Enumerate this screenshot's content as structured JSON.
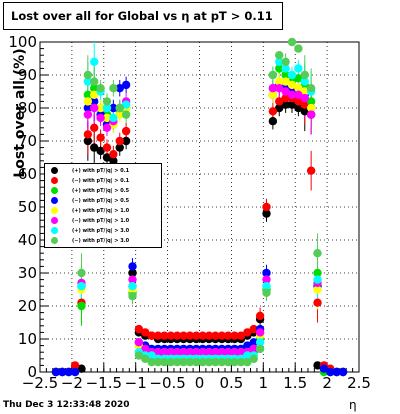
{
  "title": "Lost over all for Global vs    η at pT > 0.11",
  "footer_timestamp": "Thu Dec  3 12:33:48 2020",
  "chart_data": {
    "type": "scatter",
    "xlabel": "η",
    "ylabel": "Lost over all (%)",
    "xlim": [
      -2.5,
      2.5
    ],
    "ylim": [
      0,
      100
    ],
    "x_ticks": [
      "−2.5",
      "−2",
      "−1.5",
      "−1",
      "−0.5",
      "0",
      "0.5",
      "1",
      "1.5",
      "2",
      "2.5"
    ],
    "y_ticks": [
      "0",
      "10",
      "20",
      "30",
      "40",
      "50",
      "60",
      "70",
      "80",
      "90",
      "100"
    ],
    "grid": true,
    "legend_position": "left-middle",
    "series": [
      {
        "name": "(+) with pT/|q| > 0.1",
        "color": "#000000",
        "x": [
          -2.25,
          -2.15,
          -2.05,
          -1.95,
          -1.85,
          -1.75,
          -1.65,
          -1.55,
          -1.45,
          -1.35,
          -1.25,
          -1.15,
          -1.05,
          -0.95,
          -0.85,
          -0.75,
          -0.65,
          -0.55,
          -0.45,
          -0.35,
          -0.25,
          -0.15,
          -0.05,
          0.05,
          0.15,
          0.25,
          0.35,
          0.45,
          0.55,
          0.65,
          0.75,
          0.85,
          0.95,
          1.05,
          1.15,
          1.25,
          1.35,
          1.45,
          1.55,
          1.65,
          1.75,
          1.85,
          1.95,
          2.05,
          2.15,
          2.25
        ],
        "y": [
          0,
          0,
          0,
          1,
          1,
          70,
          68,
          67,
          65,
          64,
          68,
          70,
          30,
          12,
          11,
          11,
          10,
          10,
          10,
          10,
          10,
          10,
          10,
          10,
          10,
          10,
          10,
          10,
          10,
          10,
          11,
          12,
          16,
          48,
          76,
          80,
          81,
          81,
          80,
          79,
          78,
          2,
          1,
          0,
          0,
          0
        ]
      },
      {
        "name": "(−) with pT/|q| > 0.1",
        "color": "#ff0000",
        "x": [
          -2.25,
          -2.15,
          -2.05,
          -1.95,
          -1.85,
          -1.75,
          -1.65,
          -1.55,
          -1.45,
          -1.35,
          -1.25,
          -1.15,
          -1.05,
          -0.95,
          -0.85,
          -0.75,
          -0.65,
          -0.55,
          -0.45,
          -0.35,
          -0.25,
          -0.15,
          -0.05,
          0.05,
          0.15,
          0.25,
          0.35,
          0.45,
          0.55,
          0.65,
          0.75,
          0.85,
          0.95,
          1.05,
          1.15,
          1.25,
          1.35,
          1.45,
          1.55,
          1.65,
          1.75,
          1.85,
          1.95,
          2.05,
          2.15,
          2.25
        ],
        "y": [
          0,
          0,
          0,
          2,
          21,
          72,
          74,
          71,
          68,
          66,
          70,
          73,
          26,
          13,
          12,
          11,
          11,
          11,
          11,
          11,
          11,
          11,
          11,
          11,
          11,
          11,
          11,
          11,
          11,
          11,
          12,
          13,
          17,
          50,
          79,
          82,
          83,
          83,
          82,
          81,
          61,
          21,
          2,
          1,
          0,
          0
        ]
      },
      {
        "name": "(+) with pT/|q| > 0.5",
        "color": "#00dd00",
        "x": [
          -2.25,
          -2.15,
          -2.05,
          -1.95,
          -1.85,
          -1.75,
          -1.65,
          -1.55,
          -1.45,
          -1.35,
          -1.25,
          -1.15,
          -1.05,
          -0.95,
          -0.85,
          -0.75,
          -0.65,
          -0.55,
          -0.45,
          -0.35,
          -0.25,
          -0.15,
          -0.05,
          0.05,
          0.15,
          0.25,
          0.35,
          0.45,
          0.55,
          0.65,
          0.75,
          0.85,
          0.95,
          1.05,
          1.15,
          1.25,
          1.35,
          1.45,
          1.55,
          1.65,
          1.75,
          1.85,
          1.95,
          2.05,
          2.15,
          2.25
        ],
        "y": [
          0,
          0,
          0,
          0,
          20,
          84,
          86,
          80,
          78,
          75,
          79,
          80,
          24,
          8,
          6,
          5,
          5,
          4,
          4,
          4,
          4,
          4,
          4,
          4,
          4,
          4,
          4,
          4,
          4,
          5,
          5,
          6,
          10,
          25,
          86,
          92,
          90,
          88,
          89,
          87,
          82,
          30,
          0,
          0,
          0,
          0
        ]
      },
      {
        "name": "(−) with pT/|q| > 0.5",
        "color": "#0000ff",
        "x": [
          -2.25,
          -2.15,
          -2.05,
          -1.95,
          -1.85,
          -1.75,
          -1.65,
          -1.55,
          -1.45,
          -1.35,
          -1.25,
          -1.15,
          -1.05,
          -0.95,
          -0.85,
          -0.75,
          -0.65,
          -0.55,
          -0.45,
          -0.35,
          -0.25,
          -0.15,
          -0.05,
          0.05,
          0.15,
          0.25,
          0.35,
          0.45,
          0.55,
          0.65,
          0.75,
          0.85,
          0.95,
          1.05,
          1.15,
          1.25,
          1.35,
          1.45,
          1.55,
          1.65,
          1.75,
          1.85,
          1.95,
          2.05,
          2.15,
          2.25
        ],
        "y": [
          0,
          0,
          0,
          0,
          26,
          80,
          82,
          78,
          75,
          80,
          86,
          87,
          32,
          9,
          8,
          7,
          7,
          7,
          7,
          7,
          7,
          7,
          7,
          7,
          7,
          7,
          7,
          7,
          7,
          7,
          8,
          9,
          13,
          30,
          84,
          87,
          87,
          86,
          85,
          84,
          80,
          26,
          1,
          0,
          0,
          0
        ]
      },
      {
        "name": "(+) with pT/|q| > 1.0",
        "color": "#ffff00",
        "x": [
          -1.85,
          -1.75,
          -1.65,
          -1.55,
          -1.45,
          -1.35,
          -1.25,
          -1.15,
          -1.05,
          -0.95,
          -0.85,
          -0.75,
          -0.65,
          -0.55,
          -0.45,
          -0.35,
          -0.25,
          -0.15,
          -0.05,
          0.05,
          0.15,
          0.25,
          0.35,
          0.45,
          0.55,
          0.65,
          0.75,
          0.85,
          0.95,
          1.05,
          1.15,
          1.25,
          1.35,
          1.45,
          1.55,
          1.65,
          1.75,
          1.85
        ],
        "y": [
          25,
          82,
          84,
          80,
          77,
          75,
          78,
          80,
          25,
          8,
          6,
          6,
          6,
          6,
          6,
          6,
          6,
          6,
          6,
          6,
          6,
          6,
          6,
          6,
          6,
          6,
          6,
          7,
          11,
          26,
          84,
          88,
          88,
          87,
          86,
          85,
          80,
          25
        ]
      },
      {
        "name": "(−) with pT/|q| > 1.0",
        "color": "#ff00ff",
        "x": [
          -1.85,
          -1.75,
          -1.65,
          -1.55,
          -1.45,
          -1.35,
          -1.25,
          -1.15,
          -1.05,
          -0.95,
          -0.85,
          -0.75,
          -0.65,
          -0.55,
          -0.45,
          -0.35,
          -0.25,
          -0.15,
          -0.05,
          0.05,
          0.15,
          0.25,
          0.35,
          0.45,
          0.55,
          0.65,
          0.75,
          0.85,
          0.95,
          1.05,
          1.15,
          1.25,
          1.35,
          1.45,
          1.55,
          1.65,
          1.75,
          1.85
        ],
        "y": [
          27,
          78,
          80,
          77,
          74,
          76,
          80,
          82,
          28,
          9,
          7,
          6,
          6,
          6,
          6,
          6,
          6,
          6,
          6,
          6,
          6,
          6,
          6,
          6,
          6,
          6,
          6,
          7,
          12,
          28,
          86,
          86,
          85,
          84,
          84,
          83,
          78,
          27
        ]
      },
      {
        "name": "(+) with pT/|q| > 3.0",
        "color": "#00ffff",
        "x": [
          -1.85,
          -1.75,
          -1.65,
          -1.55,
          -1.45,
          -1.35,
          -1.25,
          -1.15,
          -1.05,
          -0.95,
          -0.85,
          -0.75,
          -0.65,
          -0.55,
          -0.45,
          -0.35,
          -0.25,
          -0.15,
          -0.05,
          0.05,
          0.15,
          0.25,
          0.35,
          0.45,
          0.55,
          0.65,
          0.75,
          0.85,
          0.95,
          1.05,
          1.15,
          1.25,
          1.35,
          1.45,
          1.55,
          1.65,
          1.75,
          1.85
        ],
        "y": [
          26,
          88,
          94,
          85,
          80,
          77,
          80,
          81,
          26,
          6,
          5,
          5,
          4,
          4,
          4,
          4,
          4,
          4,
          4,
          4,
          4,
          4,
          4,
          4,
          4,
          4,
          5,
          5,
          9,
          26,
          90,
          94,
          92,
          90,
          92,
          88,
          85,
          28
        ]
      },
      {
        "name": "(−) with pT/|q| > 3.0",
        "color": "#55cc55",
        "x": [
          -1.85,
          -1.75,
          -1.65,
          -1.55,
          -1.45,
          -1.35,
          -1.25,
          -1.15,
          -1.05,
          -0.95,
          -0.85,
          -0.75,
          -0.65,
          -0.55,
          -0.45,
          -0.35,
          -0.25,
          -0.15,
          -0.05,
          0.05,
          0.15,
          0.25,
          0.35,
          0.45,
          0.55,
          0.65,
          0.75,
          0.85,
          0.95,
          1.05,
          1.15,
          1.25,
          1.35,
          1.45,
          1.55,
          1.65,
          1.75,
          1.85
        ],
        "y": [
          30,
          90,
          88,
          86,
          82,
          86,
          80,
          78,
          23,
          5,
          4,
          3,
          3,
          3,
          3,
          3,
          3,
          3,
          3,
          3,
          3,
          3,
          3,
          3,
          3,
          3,
          3,
          4,
          7,
          24,
          90,
          96,
          94,
          100,
          98,
          90,
          86,
          36
        ]
      }
    ]
  }
}
